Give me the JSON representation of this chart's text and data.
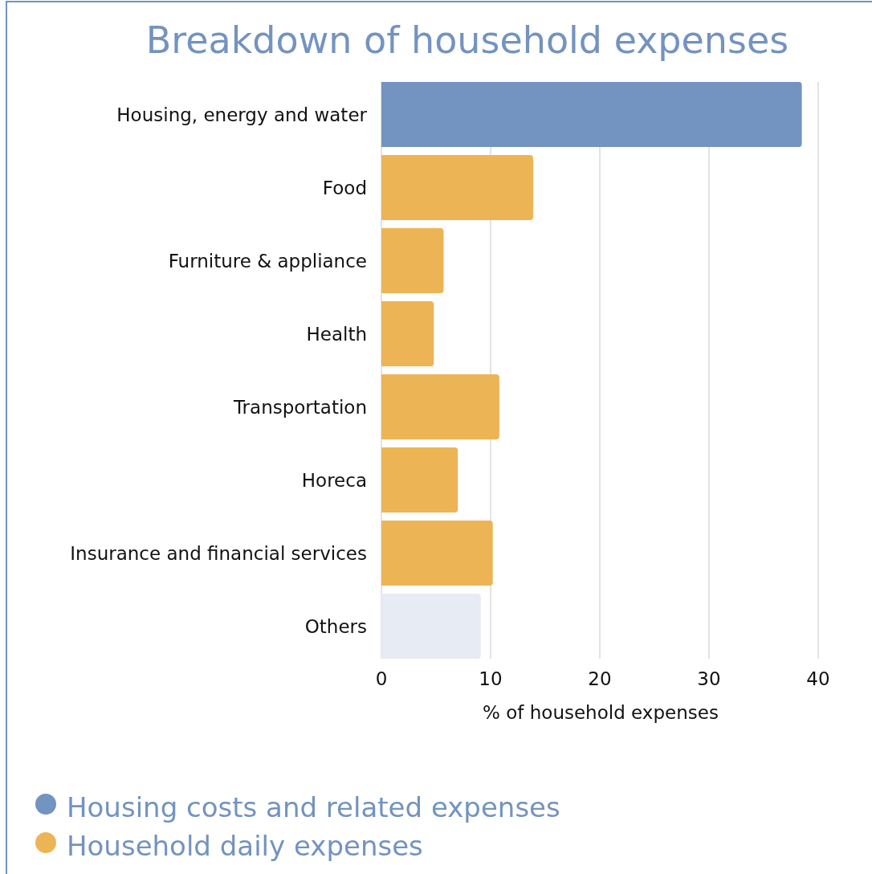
{
  "chart_data": {
    "type": "bar",
    "title": "Breakdown of household expenses",
    "xlabel": "% of household expenses",
    "orientation": "horizontal",
    "categories": [
      "Housing, energy and water",
      "Food",
      "Furniture & appliance",
      "Health",
      "Transportation",
      "Horeca",
      "Insurance and financial services",
      "Others"
    ],
    "series": [
      {
        "name": "Housing costs and related expenses",
        "color": "#7393c0",
        "values": [
          38.5,
          null,
          null,
          null,
          null,
          null,
          null,
          null
        ]
      },
      {
        "name": "Household daily expenses",
        "color": "#edb455",
        "values": [
          null,
          13.9,
          5.7,
          4.8,
          10.8,
          7.0,
          10.2,
          null
        ]
      },
      {
        "color": "#e6ebf4",
        "values": [
          null,
          null,
          null,
          null,
          null,
          null,
          null,
          9.1
        ]
      }
    ],
    "xlim": [
      0,
      40
    ],
    "xticks": [
      0,
      10,
      20,
      30,
      40
    ],
    "grid": "x",
    "legend": "bottom left"
  }
}
